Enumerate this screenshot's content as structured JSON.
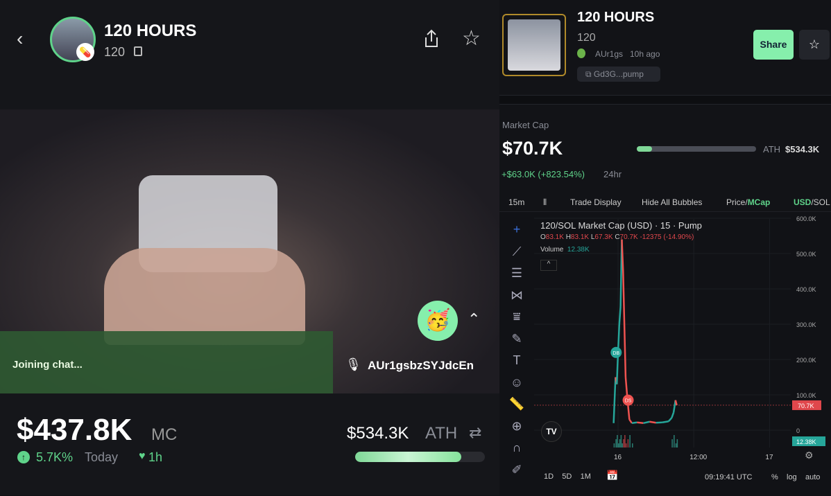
{
  "stream": {
    "title": "120 HOURS",
    "ticker": "120",
    "chat_status": "Joining chat...",
    "speaker": "AUr1gsbzSYJdcEn",
    "reaction_emoji": "🥳",
    "market_cap": "$437.8K",
    "market_cap_unit": "MC",
    "change": "5.7K%",
    "change_period": "Today",
    "age": "1h",
    "ath": "$534.3K",
    "ath_label": "ATH",
    "ath_progress": 0.82
  },
  "token": {
    "title": "120 HOURS",
    "ticker": "120",
    "creator": "AUr1gs",
    "created": "10h ago",
    "address": "Gd3G...pump",
    "share_label": "Share",
    "market_cap_label": "Market Cap",
    "market_cap": "$70.7K",
    "ath_label": "ATH",
    "ath": "$534.3K",
    "ath_progress": 0.13,
    "change": "+$63.0K (+823.54%)",
    "change_period": "24hr",
    "accent": "#86efac"
  },
  "chart_toolbar": {
    "interval": "15m",
    "trade_display": "Trade Display",
    "hide_bubbles": "Hide All Bubbles",
    "price": "Price/",
    "mcap": "MCap",
    "usd": "USD",
    "sol": "/SOL"
  },
  "chart_data": {
    "type": "line",
    "title": "120/SOL Market Cap (USD) · 15 · Pump",
    "ohlc": {
      "o": "83.1K",
      "h": "83.1K",
      "l": "67.3K",
      "c": "70.7K",
      "change": "-12375 (-14.90%)"
    },
    "volume_label": "Volume",
    "volume": "12.38K",
    "y_ticks": [
      "600.0K",
      "500.0K",
      "400.0K",
      "300.0K",
      "200.0K",
      "100.0K",
      "0"
    ],
    "x_ticks": [
      "16",
      "12:00",
      "17"
    ],
    "last_price_label": "70.7K",
    "volume_badge": "12.38K",
    "ylim": [
      0,
      600
    ],
    "x_hours": [
      -0.7,
      -0.4,
      -0.2,
      0,
      0.2,
      0.4,
      0.6,
      0.8,
      1.0,
      1.2,
      1.5,
      1.8,
      2.2,
      3,
      4,
      5,
      6,
      7,
      8,
      8.5,
      8.8,
      9.1,
      9.3
    ],
    "values_k": [
      20,
      150,
      130,
      220,
      300,
      350,
      540,
      450,
      300,
      150,
      85,
      30,
      20,
      22,
      20,
      24,
      21,
      22,
      25,
      35,
      50,
      85,
      70.7
    ],
    "markers": [
      {
        "label": "DB",
        "hour": -0.3,
        "value": 220
      },
      {
        "label": "DS",
        "hour": 1.6,
        "value": 85
      }
    ],
    "bottom": {
      "ranges": [
        "1D",
        "5D",
        "1M"
      ],
      "time": "09:19:41 UTC",
      "pct": "%",
      "log": "log",
      "auto": "auto"
    }
  }
}
